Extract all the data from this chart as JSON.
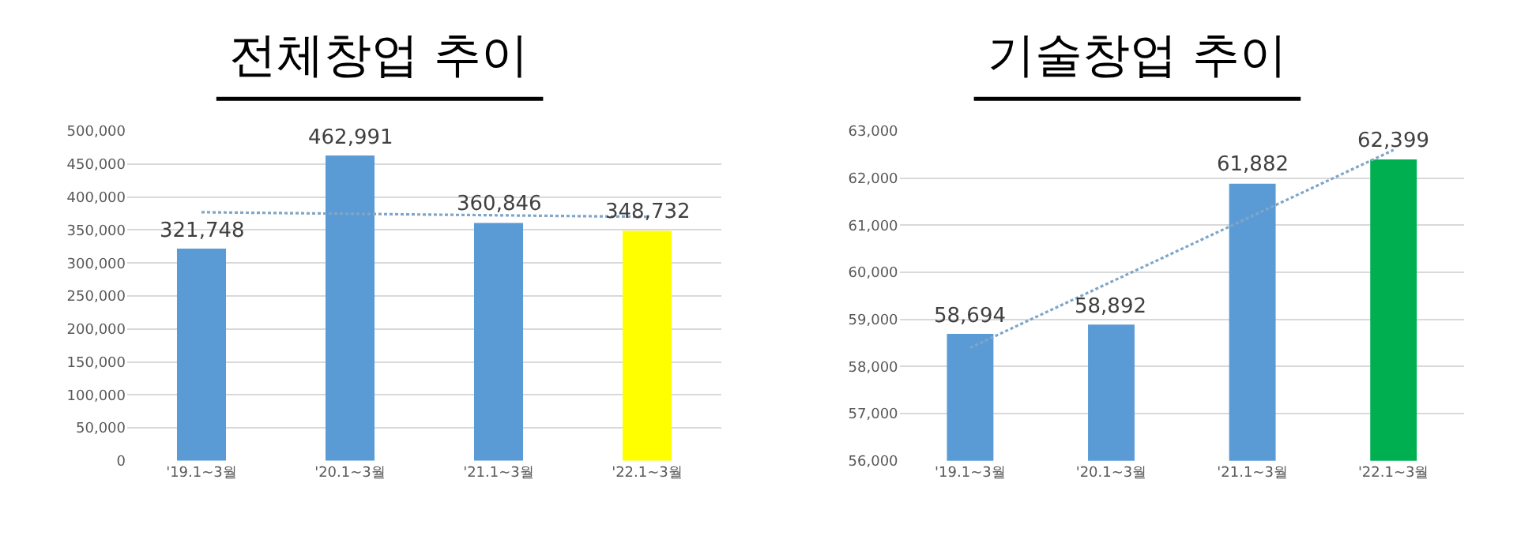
{
  "chart_data": [
    {
      "type": "bar",
      "title": "전체창업 추이",
      "categories": [
        "'19.1~3월",
        "'20.1~3월",
        "'21.1~3월",
        "'22.1~3월"
      ],
      "values": [
        321748,
        462991,
        360846,
        348732
      ],
      "colors": [
        "#5b9bd5",
        "#5b9bd5",
        "#5b9bd5",
        "#ffff00"
      ],
      "value_labels": [
        "321,748",
        "462,991",
        "360,846",
        "348,732"
      ],
      "ylim": [
        0,
        500000
      ],
      "yticks": [
        {
          "value": 0,
          "label": "0"
        },
        {
          "value": 50000,
          "label": "50,000"
        },
        {
          "value": 100000,
          "label": "100,000"
        },
        {
          "value": 150000,
          "label": "150,000"
        },
        {
          "value": 200000,
          "label": "200,000"
        },
        {
          "value": 250000,
          "label": "250,000"
        },
        {
          "value": 300000,
          "label": "300,000"
        },
        {
          "value": 350000,
          "label": "350,000"
        },
        {
          "value": 400000,
          "label": "400,000"
        },
        {
          "value": 450000,
          "label": "450,000"
        },
        {
          "value": 500000,
          "label": "500,000"
        }
      ],
      "grid": "y",
      "series": [
        {
          "type": "line",
          "x": [
            "'19.1~3월",
            "'22.1~3월"
          ],
          "values": [
            377000,
            370000
          ],
          "color": "#7fa6c9",
          "line_style": "dotted",
          "marker": "none"
        }
      ]
    },
    {
      "type": "bar",
      "title": "기술창업 추이",
      "categories": [
        "'19.1~3월",
        "'20.1~3월",
        "'21.1~3월",
        "'22.1~3월"
      ],
      "values": [
        58694,
        58892,
        61882,
        62399
      ],
      "colors": [
        "#5b9bd5",
        "#5b9bd5",
        "#5b9bd5",
        "#00b050"
      ],
      "value_labels": [
        "58,694",
        "58,892",
        "61,882",
        "62,399"
      ],
      "ylim": [
        56000,
        63000
      ],
      "yticks": [
        {
          "value": 56000,
          "label": "56,000"
        },
        {
          "value": 57000,
          "label": "57,000"
        },
        {
          "value": 58000,
          "label": "58,000"
        },
        {
          "value": 59000,
          "label": "59,000"
        },
        {
          "value": 60000,
          "label": "60,000"
        },
        {
          "value": 61000,
          "label": "61,000"
        },
        {
          "value": 62000,
          "label": "62,000"
        },
        {
          "value": 63000,
          "label": "63,000"
        }
      ],
      "grid": "y",
      "series": [
        {
          "type": "line",
          "x": [
            "'19.1~3월",
            "'22.1~3월"
          ],
          "values": [
            58400,
            62600
          ],
          "color": "#7fa6c9",
          "line_style": "dotted",
          "marker": "none"
        }
      ]
    }
  ]
}
